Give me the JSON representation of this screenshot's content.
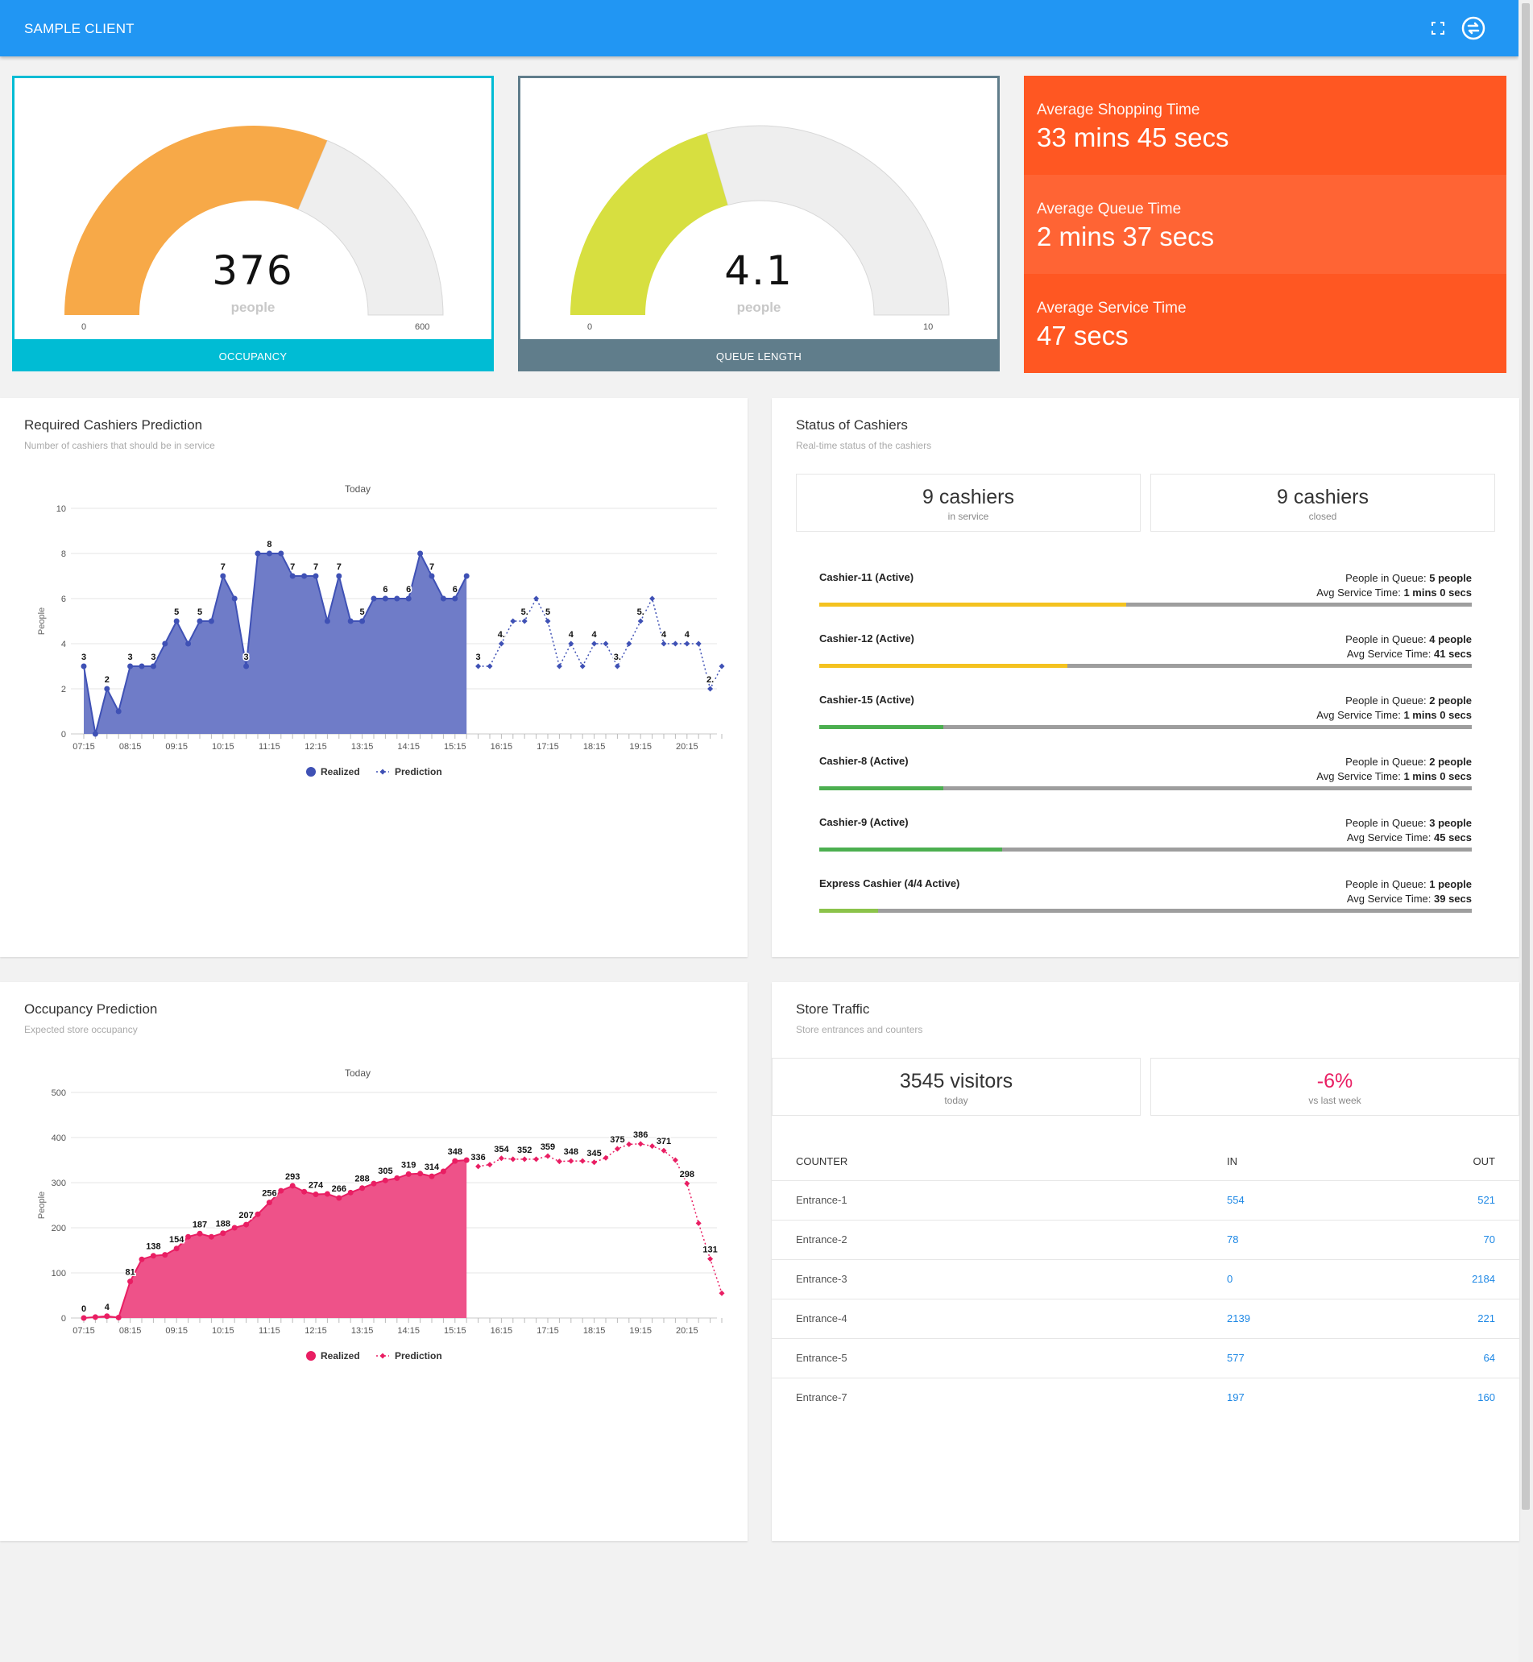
{
  "header": {
    "title": "SAMPLE CLIENT",
    "fullscreen_icon": "fullscreen-icon",
    "sync_icon": "sync-icon"
  },
  "colors": {
    "primary": "#2196f3",
    "occupancy": "#00bcd4",
    "queue": "#607d8b",
    "orange": "#ff5722",
    "orange_mid": "#ff6434",
    "gauge_orange": "#f7a948",
    "gauge_lime": "#d7df40",
    "realized_blue": "#3f51b5",
    "realized_pink": "#e91e63"
  },
  "gauges": [
    {
      "label": "OCCUPANCY",
      "value": "376",
      "unit": "people",
      "min": "0",
      "max": "600",
      "fraction": 0.6267
    },
    {
      "label": "QUEUE LENGTH",
      "value": "4.1",
      "unit": "people",
      "min": "0",
      "max": "10",
      "fraction": 0.41
    }
  ],
  "stats": [
    {
      "label": "Average Shopping Time",
      "value": "33 mins 45 secs"
    },
    {
      "label": "Average Queue Time",
      "value": "2 mins 37 secs"
    },
    {
      "label": "Average Service Time",
      "value": "47 secs"
    }
  ],
  "cashier_prediction": {
    "title": "Required Cashiers Prediction",
    "subtitle": "Number of cashiers that should be in service"
  },
  "occupancy_prediction": {
    "title": "Occupancy Prediction",
    "subtitle": "Expected store occupancy"
  },
  "chart_data": [
    {
      "type": "area",
      "title": "Today",
      "ylabel": "People",
      "xlabel": "",
      "ylim": [
        0,
        10
      ],
      "yticks": [
        "0",
        "2",
        "4",
        "6",
        "8",
        "10"
      ],
      "x_tick_labels": [
        "07:15",
        "08:15",
        "09:15",
        "10:15",
        "11:15",
        "12:15",
        "13:15",
        "14:15",
        "15:15",
        "16:15",
        "17:15",
        "18:15",
        "19:15",
        "20:15"
      ],
      "legend": [
        "Realized",
        "Prediction"
      ],
      "series": [
        {
          "name": "Realized",
          "values": [
            3,
            0,
            2,
            1,
            3,
            3,
            3,
            4,
            5,
            4,
            5,
            5,
            7,
            6,
            3,
            8,
            8,
            8,
            7,
            7,
            7,
            5,
            7,
            5,
            5,
            6,
            6,
            6,
            6,
            8,
            7,
            6,
            6,
            7
          ]
        },
        {
          "name": "Prediction",
          "values": [
            3,
            3,
            4,
            5,
            5,
            6,
            5,
            3,
            4,
            3,
            4,
            4,
            3,
            4,
            5,
            6,
            4,
            4,
            4,
            4,
            2,
            3
          ]
        }
      ],
      "data_labels": [
        {
          "i": 0,
          "t": "3"
        },
        {
          "i": 2,
          "t": "2"
        },
        {
          "i": 4,
          "t": "3"
        },
        {
          "i": 6,
          "t": "3"
        },
        {
          "i": 8,
          "t": "5"
        },
        {
          "i": 10,
          "t": "5"
        },
        {
          "i": 12,
          "t": "7"
        },
        {
          "i": 14,
          "t": "3"
        },
        {
          "i": 16,
          "t": "8"
        },
        {
          "i": 18,
          "t": "7"
        },
        {
          "i": 20,
          "t": "7"
        },
        {
          "i": 22,
          "t": "7"
        },
        {
          "i": 24,
          "t": "5"
        },
        {
          "i": 26,
          "t": "6"
        },
        {
          "i": 28,
          "t": "6"
        },
        {
          "i": 30,
          "t": "7"
        },
        {
          "i": 32,
          "t": "6"
        },
        {
          "i": 34,
          "t": "3"
        },
        {
          "i": 36,
          "t": "4."
        },
        {
          "i": 38,
          "t": "5."
        },
        {
          "i": 40,
          "t": "5"
        },
        {
          "i": 42,
          "t": "4"
        },
        {
          "i": 44,
          "t": "4"
        },
        {
          "i": 46,
          "t": "3."
        },
        {
          "i": 48,
          "t": "5."
        },
        {
          "i": 50,
          "t": "4"
        },
        {
          "i": 52,
          "t": "4"
        },
        {
          "i": 54,
          "t": "2."
        }
      ]
    },
    {
      "type": "area",
      "title": "Today",
      "ylabel": "People",
      "xlabel": "",
      "ylim": [
        0,
        500
      ],
      "yticks": [
        "0",
        "100",
        "200",
        "300",
        "400",
        "500"
      ],
      "x_tick_labels": [
        "07:15",
        "08:15",
        "09:15",
        "10:15",
        "11:15",
        "12:15",
        "13:15",
        "14:15",
        "15:15",
        "16:15",
        "17:15",
        "18:15",
        "19:15",
        "20:15"
      ],
      "legend": [
        "Realized",
        "Prediction"
      ],
      "series": [
        {
          "name": "Realized",
          "values": [
            0,
            2,
            4,
            1,
            81,
            130,
            138,
            140,
            154,
            180,
            187,
            180,
            188,
            200,
            207,
            230,
            256,
            282,
            293,
            280,
            274,
            275,
            266,
            278,
            288,
            298,
            305,
            310,
            319,
            320,
            314,
            325,
            348,
            350
          ]
        },
        {
          "name": "Prediction",
          "values": [
            336,
            340,
            354,
            352,
            352,
            352,
            359,
            347,
            348,
            348,
            345,
            355,
            375,
            385,
            386,
            381,
            371,
            350,
            298,
            210,
            131,
            55
          ]
        }
      ],
      "data_labels": [
        {
          "i": 0,
          "t": "0"
        },
        {
          "i": 2,
          "t": "4"
        },
        {
          "i": 4,
          "t": "81"
        },
        {
          "i": 6,
          "t": "138"
        },
        {
          "i": 8,
          "t": "154"
        },
        {
          "i": 10,
          "t": "187"
        },
        {
          "i": 12,
          "t": "188"
        },
        {
          "i": 14,
          "t": "207"
        },
        {
          "i": 16,
          "t": "256"
        },
        {
          "i": 18,
          "t": "293"
        },
        {
          "i": 20,
          "t": "274"
        },
        {
          "i": 22,
          "t": "266"
        },
        {
          "i": 24,
          "t": "288"
        },
        {
          "i": 26,
          "t": "305"
        },
        {
          "i": 28,
          "t": "319"
        },
        {
          "i": 30,
          "t": "314"
        },
        {
          "i": 32,
          "t": "348"
        },
        {
          "i": 34,
          "t": "336"
        },
        {
          "i": 36,
          "t": "354"
        },
        {
          "i": 38,
          "t": "352"
        },
        {
          "i": 40,
          "t": "359"
        },
        {
          "i": 42,
          "t": "348"
        },
        {
          "i": 44,
          "t": "345"
        },
        {
          "i": 46,
          "t": "375"
        },
        {
          "i": 48,
          "t": "386"
        },
        {
          "i": 50,
          "t": "371"
        },
        {
          "i": 52,
          "t": "298"
        },
        {
          "i": 54,
          "t": "131"
        }
      ]
    }
  ],
  "cashiers": {
    "title": "Status of Cashiers",
    "subtitle": "Real-time status of the cashiers",
    "in_service": {
      "value": "9 cashiers",
      "label": "in service"
    },
    "closed": {
      "value": "9 cashiers",
      "label": "closed"
    },
    "queue_label": "People in Queue: ",
    "service_label": "Avg Service Time: ",
    "rows": [
      {
        "name": "Cashier-11 (Active)",
        "queue": "5 people",
        "service": "1 mins 0 secs",
        "fraction": 0.47,
        "color": "#f4c21f"
      },
      {
        "name": "Cashier-12 (Active)",
        "queue": "4 people",
        "service": "41 secs",
        "fraction": 0.38,
        "color": "#f4c21f"
      },
      {
        "name": "Cashier-15 (Active)",
        "queue": "2 people",
        "service": "1 mins 0 secs",
        "fraction": 0.19,
        "color": "#4caf50"
      },
      {
        "name": "Cashier-8 (Active)",
        "queue": "2 people",
        "service": "1 mins 0 secs",
        "fraction": 0.19,
        "color": "#4caf50"
      },
      {
        "name": "Cashier-9 (Active)",
        "queue": "3 people",
        "service": "45 secs",
        "fraction": 0.28,
        "color": "#4caf50"
      },
      {
        "name": "Express Cashier (4/4 Active)",
        "queue": "1 people",
        "service": "39 secs",
        "fraction": 0.09,
        "color": "#8bc34a"
      }
    ]
  },
  "traffic": {
    "title": "Store Traffic",
    "subtitle": "Store entrances and counters",
    "visitors": {
      "value": "3545 visitors",
      "label": "today"
    },
    "change": {
      "value": "-6%",
      "label": "vs last week"
    },
    "columns": [
      "COUNTER",
      "IN",
      "OUT"
    ],
    "rows": [
      {
        "name": "Entrance-1",
        "in": "554",
        "out": "521"
      },
      {
        "name": "Entrance-2",
        "in": "78",
        "out": "70"
      },
      {
        "name": "Entrance-3",
        "in": "0",
        "out": "2184"
      },
      {
        "name": "Entrance-4",
        "in": "2139",
        "out": "221"
      },
      {
        "name": "Entrance-5",
        "in": "577",
        "out": "64"
      },
      {
        "name": "Entrance-7",
        "in": "197",
        "out": "160"
      }
    ]
  }
}
